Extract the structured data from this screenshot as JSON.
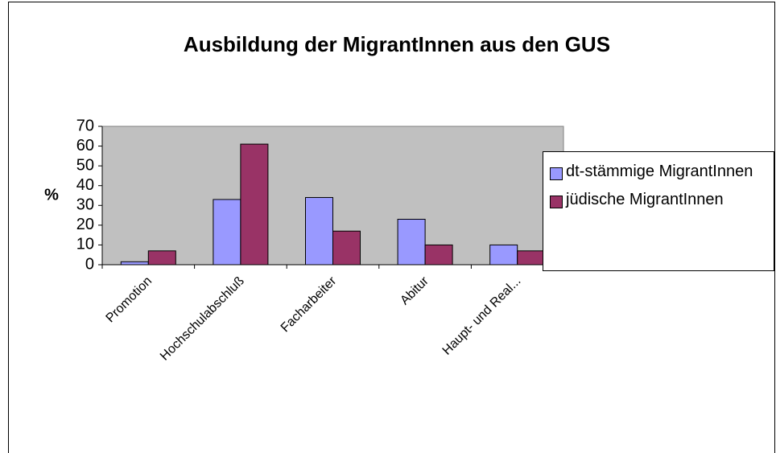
{
  "chart_data": {
    "type": "bar",
    "title": "Ausbildung der MigrantInnen aus den GUS",
    "y_label": "%",
    "categories": [
      "Promotion",
      "Hochschulabschluß",
      "Facharbeiter",
      "Abitur",
      "Haupt- und Real..."
    ],
    "series": [
      {
        "name": "dt-stämmige MigrantInnen",
        "color": "#9999ff",
        "values": [
          1.5,
          33,
          34,
          23,
          10
        ]
      },
      {
        "name": "jüdische MigrantInnen",
        "color": "#993366",
        "values": [
          7,
          61,
          17,
          10,
          7
        ]
      }
    ],
    "ylim": [
      0,
      70
    ],
    "yticks": [
      0,
      10,
      20,
      30,
      40,
      50,
      60,
      70
    ],
    "grid": false,
    "legend": "right"
  }
}
